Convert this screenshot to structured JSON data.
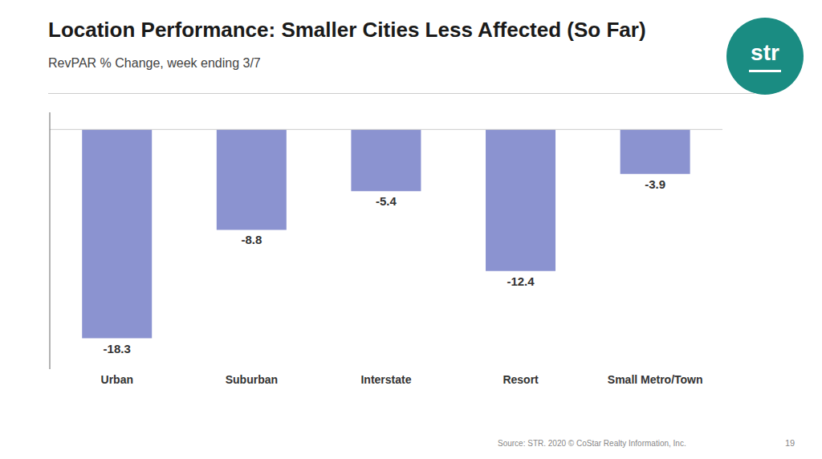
{
  "chart_data": {
    "type": "bar",
    "title": "Location Performance: Smaller Cities Less Affected (So Far)",
    "subtitle": "RevPAR % Change, week ending 3/7",
    "categories": [
      "Urban",
      "Suburban",
      "Interstate",
      "Resort",
      "Small Metro/Town"
    ],
    "values": [
      -18.3,
      -8.8,
      -5.4,
      -12.4,
      -3.9
    ],
    "color": "#8B93D0",
    "ylim": [
      -21,
      1.5
    ],
    "tick_labels": "x",
    "data_labels": true,
    "grid": false,
    "annotations": [
      {
        "text": "Source: STR. 2020 © CoStar Realty Information, Inc."
      },
      {
        "text": "19"
      },
      {
        "text": "str",
        "color": "#1A8C82"
      }
    ]
  }
}
